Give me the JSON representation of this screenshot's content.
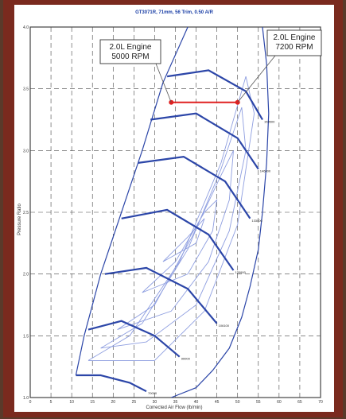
{
  "chart_data": {
    "type": "line",
    "title": "GT3071R, 71mm, 56 Trim, 0.50 A/R",
    "xlabel": "Corrected Air Flow (lb/min)",
    "ylabel": "Pressure Ratio",
    "xlim": [
      0,
      70
    ],
    "ylim": [
      1.0,
      4.0
    ],
    "x_ticks": [
      0,
      5,
      10,
      15,
      20,
      25,
      30,
      35,
      40,
      45,
      50,
      55,
      60,
      65,
      70
    ],
    "y_ticks": [
      1.0,
      1.5,
      2.0,
      2.5,
      3.0,
      3.5,
      4.0
    ],
    "grid": true,
    "surge_line": [
      [
        11,
        1.18
      ],
      [
        13,
        1.5
      ],
      [
        17,
        2.0
      ],
      [
        22,
        2.5
      ],
      [
        27,
        3.0
      ],
      [
        32,
        3.55
      ],
      [
        38,
        4.0
      ]
    ],
    "choke_line": [
      [
        56,
        4.0
      ],
      [
        57,
        3.7
      ],
      [
        57.5,
        3.3
      ],
      [
        57,
        2.9
      ],
      [
        56,
        2.5
      ],
      [
        55,
        2.2
      ],
      [
        53,
        1.9
      ],
      [
        51,
        1.65
      ],
      [
        48,
        1.4
      ],
      [
        44,
        1.22
      ],
      [
        40,
        1.08
      ],
      [
        34,
        1.0
      ]
    ],
    "speed_lines": [
      {
        "label": "70000",
        "points": [
          [
            11,
            1.18
          ],
          [
            17,
            1.18
          ],
          [
            24,
            1.12
          ],
          [
            28,
            1.05
          ]
        ]
      },
      {
        "label": "90000",
        "points": [
          [
            14,
            1.55
          ],
          [
            22,
            1.62
          ],
          [
            30,
            1.5
          ],
          [
            36,
            1.33
          ]
        ]
      },
      {
        "label": "106100",
        "points": [
          [
            18,
            2.0
          ],
          [
            28,
            2.05
          ],
          [
            38,
            1.88
          ],
          [
            45,
            1.6
          ]
        ]
      },
      {
        "label": "120900",
        "points": [
          [
            22,
            2.45
          ],
          [
            33,
            2.52
          ],
          [
            43,
            2.32
          ],
          [
            49,
            2.03
          ]
        ]
      },
      {
        "label": "133000",
        "points": [
          [
            26,
            2.9
          ],
          [
            37,
            2.95
          ],
          [
            47,
            2.75
          ],
          [
            53,
            2.45
          ]
        ]
      },
      {
        "label": "146000",
        "points": [
          [
            29,
            3.25
          ],
          [
            40,
            3.3
          ],
          [
            50,
            3.1
          ],
          [
            55,
            2.85
          ]
        ]
      },
      {
        "label": "153500",
        "points": [
          [
            33,
            3.6
          ],
          [
            43,
            3.65
          ],
          [
            52,
            3.48
          ],
          [
            56,
            3.25
          ]
        ]
      }
    ],
    "efficiency_islands": [
      {
        "label": "60%",
        "points": [
          [
            14,
            1.3
          ],
          [
            24,
            1.5
          ],
          [
            36,
            2.1
          ],
          [
            46,
            2.9
          ],
          [
            52,
            3.6
          ],
          [
            54,
            3.3
          ],
          [
            50,
            2.4
          ],
          [
            42,
            1.7
          ],
          [
            30,
            1.3
          ],
          [
            14,
            1.3
          ]
        ]
      },
      {
        "label": "65%",
        "points": [
          [
            17,
            1.4
          ],
          [
            27,
            1.6
          ],
          [
            38,
            2.2
          ],
          [
            46,
            2.85
          ],
          [
            51,
            3.35
          ],
          [
            52,
            3.0
          ],
          [
            48,
            2.35
          ],
          [
            40,
            1.75
          ],
          [
            28,
            1.45
          ],
          [
            17,
            1.4
          ]
        ]
      },
      {
        "label": "70%",
        "points": [
          [
            21,
            1.55
          ],
          [
            30,
            1.75
          ],
          [
            39,
            2.3
          ],
          [
            46,
            2.8
          ],
          [
            49,
            3.0
          ],
          [
            48,
            2.6
          ],
          [
            43,
            2.1
          ],
          [
            34,
            1.7
          ],
          [
            21,
            1.55
          ]
        ]
      },
      {
        "label": "74%",
        "points": [
          [
            27,
            1.85
          ],
          [
            35,
            2.1
          ],
          [
            42,
            2.5
          ],
          [
            45,
            2.6
          ],
          [
            44,
            2.35
          ],
          [
            38,
            2.0
          ],
          [
            27,
            1.85
          ]
        ]
      },
      {
        "label": "76%",
        "points": [
          [
            32,
            2.1
          ],
          [
            38,
            2.3
          ],
          [
            42,
            2.45
          ],
          [
            40,
            2.25
          ],
          [
            32,
            2.1
          ]
        ]
      }
    ],
    "engine_line": {
      "points": [
        [
          34,
          3.39
        ],
        [
          50,
          3.39
        ]
      ],
      "color": "#e02020"
    },
    "callouts": [
      {
        "lines": [
          "2.0L Engine",
          "5000 RPM"
        ]
      },
      {
        "lines": [
          "2.0L Engine",
          "7200 RPM"
        ]
      }
    ],
    "colors": {
      "curves": "#2c46a8",
      "islands": "#8e9ee0",
      "frame": "#7a2a1e",
      "grid": "#444444",
      "engine_marker": "#e02020"
    }
  }
}
